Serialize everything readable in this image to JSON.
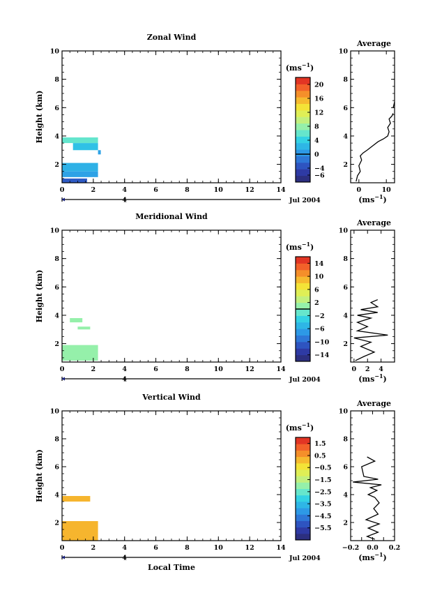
{
  "figure": {
    "xlabel": "Local Time"
  },
  "panels": [
    {
      "title": "Zonal Wind",
      "ylabel": "Height (km)",
      "unit_label": "(ms",
      "unit_exp": "−1",
      "unit_close": ")",
      "date_label": "Jul 2004",
      "date_marker": "4",
      "avg_title": "Average",
      "avg_xlabel": "(ms",
      "avg_xlabel_exp": "−1",
      "avg_xlabel_close": ")"
    },
    {
      "title": "Meridional Wind",
      "ylabel": "Height (km)",
      "unit_label": "(ms",
      "unit_exp": "−1",
      "unit_close": ")",
      "date_label": "Jul 2004",
      "date_marker": "4",
      "avg_title": "Average",
      "avg_xlabel": "(ms",
      "avg_xlabel_exp": "−1",
      "avg_xlabel_close": ")"
    },
    {
      "title": "Vertical Wind",
      "ylabel": "Height (km)",
      "unit_label": "(ms",
      "unit_exp": "−1",
      "unit_close": ")",
      "date_label": "Jul 2004",
      "date_marker": "4",
      "avg_title": "Average",
      "avg_xlabel": "(ms",
      "avg_xlabel_exp": "−1",
      "avg_xlabel_close": ")"
    }
  ],
  "chart_data": [
    {
      "type": "heatmap",
      "title": "Zonal Wind",
      "xlabel": "",
      "ylabel": "Height (km)",
      "xlim": [
        0,
        14
      ],
      "ylim": [
        0.7,
        10
      ],
      "xticks": [
        0,
        2,
        4,
        6,
        8,
        10,
        12,
        14
      ],
      "yticks": [
        2,
        4,
        6,
        8,
        10
      ],
      "colorbar": {
        "label": "(ms−1)",
        "range": [
          -8,
          22
        ],
        "ticks": [
          -6,
          -4,
          0,
          4,
          8,
          12,
          16,
          20
        ],
        "zero_line": 0
      },
      "patches": [
        {
          "x": [
            0,
            2.3
          ],
          "y": [
            3.5,
            3.9
          ],
          "v": 6
        },
        {
          "x": [
            0.7,
            2.3
          ],
          "y": [
            3.0,
            3.5
          ],
          "v": 3
        },
        {
          "x": [
            2.3,
            2.3
          ],
          "y": [
            2.7,
            3.0
          ],
          "v": 1
        },
        {
          "x": [
            0,
            2.3
          ],
          "y": [
            1.5,
            2.1
          ],
          "v": 2
        },
        {
          "x": [
            0,
            2.3
          ],
          "y": [
            1.1,
            1.5
          ],
          "v": 1
        },
        {
          "x": [
            0,
            1.6
          ],
          "y": [
            0.7,
            1.0
          ],
          "v": -3
        }
      ],
      "average": {
        "xlabel": "(ms−1)",
        "xlim": [
          -3,
          13
        ],
        "xticks": [
          0,
          10
        ],
        "ylim": [
          0.7,
          10
        ],
        "yticks": [
          2,
          4,
          6,
          8,
          10
        ],
        "profile": [
          [
            -1,
            0.8
          ],
          [
            -0.5,
            1.2
          ],
          [
            0.5,
            1.5
          ],
          [
            0,
            1.9
          ],
          [
            1,
            2.3
          ],
          [
            0.5,
            2.6
          ],
          [
            1.5,
            2.8
          ],
          [
            3,
            3.0
          ],
          [
            5,
            3.3
          ],
          [
            7,
            3.6
          ],
          [
            9,
            3.8
          ],
          [
            10.5,
            4.0
          ],
          [
            11,
            4.3
          ],
          [
            10.5,
            4.6
          ],
          [
            11.5,
            4.9
          ],
          [
            11,
            5.2
          ],
          [
            12,
            5.4
          ],
          [
            12.5,
            5.6
          ]
        ],
        "profile2": [
          [
            12.5,
            6.0
          ],
          [
            13,
            6.4
          ]
        ]
      }
    },
    {
      "type": "heatmap",
      "title": "Meridional Wind",
      "xlabel": "",
      "ylabel": "Height (km)",
      "xlim": [
        0,
        14
      ],
      "ylim": [
        0.7,
        10
      ],
      "xticks": [
        0,
        2,
        4,
        6,
        8,
        10,
        12,
        14
      ],
      "yticks": [
        2,
        4,
        6,
        8,
        10
      ],
      "colorbar": {
        "label": "(ms−1)",
        "range": [
          -16,
          16
        ],
        "ticks": [
          -14,
          -10,
          -6,
          -2,
          2,
          6,
          10,
          14
        ],
        "zero_line": 0
      },
      "patches": [
        {
          "x": [
            0.5,
            1.3
          ],
          "y": [
            3.5,
            3.8
          ],
          "v": 1
        },
        {
          "x": [
            1.0,
            1.8
          ],
          "y": [
            3.0,
            3.2
          ],
          "v": 1
        },
        {
          "x": [
            0,
            2.3
          ],
          "y": [
            0.8,
            1.9
          ],
          "v": 1
        }
      ],
      "average": {
        "xlabel": "(ms−1)",
        "xlim": [
          -0.5,
          6
        ],
        "xticks": [
          0,
          2,
          4
        ],
        "ylim": [
          0.7,
          10
        ],
        "yticks": [
          2,
          4,
          6,
          8,
          10
        ],
        "profile": [
          [
            0.2,
            0.8
          ],
          [
            1.5,
            1.1
          ],
          [
            3,
            1.4
          ],
          [
            1,
            1.8
          ],
          [
            2.5,
            2.1
          ],
          [
            0,
            2.4
          ],
          [
            5,
            2.6
          ],
          [
            0.5,
            2.9
          ],
          [
            2,
            3.2
          ],
          [
            0.5,
            3.5
          ],
          [
            2.5,
            3.8
          ],
          [
            0.5,
            4.0
          ],
          [
            3.5,
            4.2
          ],
          [
            1,
            4.4
          ],
          [
            3.5,
            4.6
          ],
          [
            2.5,
            4.9
          ],
          [
            3.5,
            5.1
          ]
        ]
      }
    },
    {
      "type": "heatmap",
      "title": "Vertical Wind",
      "xlabel": "Local Time",
      "ylabel": "Height (km)",
      "xlim": [
        0,
        14
      ],
      "ylim": [
        0.7,
        10
      ],
      "xticks": [
        0,
        2,
        4,
        6,
        8,
        10,
        12,
        14
      ],
      "yticks": [
        2,
        4,
        6,
        8,
        10
      ],
      "colorbar": {
        "label": "(ms−1)",
        "range": [
          -6.5,
          2.0
        ],
        "ticks": [
          -5.5,
          -4.5,
          -3.5,
          -2.5,
          -1.5,
          -0.5,
          0.5,
          1.5
        ],
        "zero_line": null
      },
      "patches": [
        {
          "x": [
            0,
            1.8
          ],
          "y": [
            3.5,
            3.9
          ],
          "v": 0.2
        },
        {
          "x": [
            0,
            2.3
          ],
          "y": [
            0.7,
            2.1
          ],
          "v": 0.2
        }
      ],
      "average": {
        "xlabel": "(ms−1)",
        "xlim": [
          -0.2,
          0.2
        ],
        "xticks": [
          -0.2,
          -0.1,
          0.0,
          0.1,
          0.2
        ],
        "tick_labels": [
          "−0.2",
          "",
          "0.0",
          "",
          "0.2"
        ],
        "ylim": [
          0.7,
          10
        ],
        "yticks": [
          2,
          4,
          6,
          8,
          10
        ],
        "profile": [
          [
            0.02,
            0.8
          ],
          [
            -0.05,
            1.0
          ],
          [
            0.05,
            1.3
          ],
          [
            -0.04,
            1.6
          ],
          [
            0.06,
            1.9
          ],
          [
            -0.06,
            2.2
          ],
          [
            0.05,
            2.6
          ],
          [
            0.01,
            3.0
          ],
          [
            0.06,
            3.4
          ],
          [
            0.02,
            3.8
          ],
          [
            -0.04,
            4.0
          ],
          [
            0.04,
            4.3
          ],
          [
            -0.02,
            4.5
          ],
          [
            0.08,
            4.7
          ],
          [
            -0.18,
            4.9
          ],
          [
            0.05,
            5.1
          ],
          [
            -0.08,
            5.3
          ],
          [
            -0.1,
            6.0
          ],
          [
            0.02,
            6.4
          ],
          [
            -0.05,
            6.7
          ]
        ]
      }
    }
  ]
}
